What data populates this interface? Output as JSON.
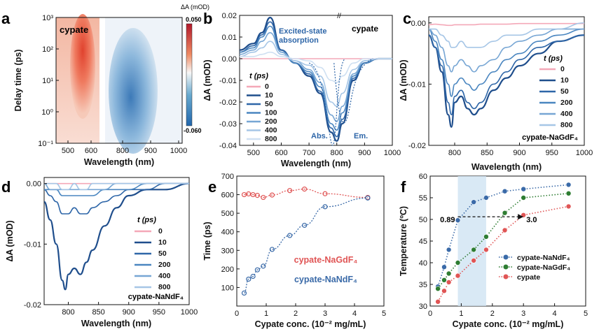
{
  "panels": {
    "a": {
      "label": "a",
      "title": "cypate",
      "ylabel": "Delay time (ps)",
      "xlabel": "Wavelength (nm)",
      "xticks": [
        "500",
        "600",
        "800",
        "900",
        "1000"
      ],
      "yticks": [
        "10⁻¹",
        "10⁰",
        "10¹",
        "10²",
        "10³"
      ],
      "colorbar_title": "ΔA (mOD)",
      "colorbar_max": "0.050",
      "colorbar_min": "-0.060",
      "colors": {
        "pos": "#d73027",
        "neg": "#2166ac",
        "zero": "#f7f7f7"
      }
    },
    "b": {
      "label": "b",
      "title": "cypate",
      "ylabel": "ΔA (mOD)",
      "xlabel": "Wavelength (nm)",
      "annotation": "Excited-state absorption",
      "abs_label": "Abs.",
      "em_label": "Em.",
      "legend_title": "t (ps)"
    },
    "c": {
      "label": "c",
      "title": "cypate-NaGdF₄",
      "ylabel": "ΔA (mOD)",
      "xlabel": "Wavelength (nm)",
      "legend_title": "t (ps)"
    },
    "d": {
      "label": "d",
      "title": "cypate-NaNdF₄",
      "ylabel": "ΔA (mOD)",
      "xlabel": "Wavelength (nm)",
      "legend_title": "t (ps)"
    },
    "e": {
      "label": "e",
      "ylabel": "Time (ps)",
      "xlabel": "Cypate conc. (10⁻² mg/mL)",
      "legend": [
        "cypate-NaGdF₄",
        "cypate-NaNdF₄"
      ]
    },
    "f": {
      "label": "f",
      "ylabel": "Temperature (ºC)",
      "xlabel": "Cypate conc. (10⁻² mg/mL)",
      "ann_left": "0.89",
      "ann_right": "3.0",
      "legend": [
        "cypate-NaNdF₄",
        "cypate-NaGdF₄",
        "cypate"
      ]
    }
  },
  "time_legend": [
    "0",
    "10",
    "50",
    "100",
    "200",
    "400",
    "800"
  ],
  "time_legend_short": [
    "0",
    "10",
    "50",
    "200",
    "400",
    "800"
  ],
  "time_colors": [
    "#f4a8b8",
    "#1f4e8c",
    "#2e66a8",
    "#4a86c0",
    "#77a6d4",
    "#a6c6e6",
    "#cfe0f2"
  ],
  "chart_data": [
    {
      "type": "heatmap",
      "panel": "a",
      "x_range": [
        450,
        1000
      ],
      "y_range_log": [
        0.1,
        1000
      ],
      "xlabel": "Wavelength (nm)",
      "ylabel": "Delay time (ps)",
      "colorbar": [
        -0.06,
        0.05
      ]
    },
    {
      "type": "line",
      "panel": "b",
      "xlabel": "Wavelength (nm)",
      "ylabel": "ΔA (mOD)",
      "xlim": [
        450,
        1000
      ],
      "ylim": [
        -0.04,
        0.02
      ],
      "x": [
        450,
        500,
        530,
        560,
        600,
        650,
        700,
        740,
        780,
        800,
        820,
        860,
        900,
        950,
        1000
      ],
      "series": [
        {
          "name": "0",
          "values": [
            0,
            0,
            0,
            0,
            0,
            0,
            0,
            0,
            0,
            0,
            0,
            0,
            0,
            0,
            0
          ]
        },
        {
          "name": "10",
          "values": [
            0.004,
            0.007,
            0.012,
            0.019,
            0.004,
            -0.002,
            -0.008,
            -0.016,
            -0.034,
            -0.038,
            -0.03,
            -0.01,
            -0.002,
            0,
            0
          ]
        },
        {
          "name": "50",
          "values": [
            0.003,
            0.006,
            0.011,
            0.017,
            0.004,
            -0.002,
            -0.007,
            -0.015,
            -0.032,
            -0.036,
            -0.028,
            -0.009,
            -0.002,
            0,
            0
          ]
        },
        {
          "name": "100",
          "values": [
            0.003,
            0.005,
            0.01,
            0.015,
            0.003,
            -0.002,
            -0.006,
            -0.013,
            -0.03,
            -0.033,
            -0.025,
            -0.008,
            -0.002,
            0,
            0
          ]
        },
        {
          "name": "200",
          "values": [
            0.002,
            0.004,
            0.008,
            0.012,
            0.003,
            -0.001,
            -0.005,
            -0.011,
            -0.026,
            -0.029,
            -0.022,
            -0.007,
            -0.001,
            0,
            0
          ]
        },
        {
          "name": "400",
          "values": [
            0.001,
            0.003,
            0.005,
            0.008,
            0.002,
            -0.001,
            -0.003,
            -0.008,
            -0.02,
            -0.022,
            -0.016,
            -0.005,
            -0.001,
            0,
            0
          ]
        },
        {
          "name": "800",
          "values": [
            0.001,
            0.001,
            0.002,
            0.003,
            0.001,
            0,
            -0.001,
            -0.004,
            -0.01,
            -0.011,
            -0.008,
            -0.002,
            0,
            0,
            0
          ]
        }
      ]
    },
    {
      "type": "line",
      "panel": "c",
      "xlabel": "Wavelength (nm)",
      "ylabel": "ΔA (mOD)",
      "xlim": [
        760,
        1000
      ],
      "ylim": [
        -0.02,
        0.001
      ],
      "x": [
        760,
        770,
        780,
        790,
        795,
        800,
        810,
        820,
        830,
        840,
        860,
        880,
        900,
        930,
        960,
        1000
      ],
      "series": [
        {
          "name": "0",
          "values": [
            -0.0003,
            -0.0002,
            -0.0003,
            -0.0004,
            -0.0004,
            -0.0003,
            -0.0003,
            -0.0003,
            -0.0003,
            -0.0002,
            -0.0002,
            -0.0002,
            -0.0001,
            -0.0001,
            -0.0001,
            -0.0001
          ]
        },
        {
          "name": "10",
          "values": [
            -0.002,
            -0.004,
            -0.008,
            -0.015,
            -0.017,
            -0.013,
            -0.012,
            -0.014,
            -0.015,
            -0.014,
            -0.011,
            -0.009,
            -0.007,
            -0.005,
            -0.003,
            -0.002
          ]
        },
        {
          "name": "50",
          "values": [
            -0.002,
            -0.004,
            -0.007,
            -0.013,
            -0.015,
            -0.012,
            -0.011,
            -0.013,
            -0.014,
            -0.013,
            -0.01,
            -0.008,
            -0.006,
            -0.004,
            -0.003,
            -0.002
          ]
        },
        {
          "name": "200",
          "values": [
            -0.001,
            -0.003,
            -0.006,
            -0.01,
            -0.012,
            -0.01,
            -0.009,
            -0.01,
            -0.011,
            -0.01,
            -0.008,
            -0.006,
            -0.005,
            -0.003,
            -0.002,
            -0.001
          ]
        },
        {
          "name": "400",
          "values": [
            -0.001,
            -0.002,
            -0.004,
            -0.007,
            -0.008,
            -0.007,
            -0.006,
            -0.007,
            -0.008,
            -0.007,
            -0.006,
            -0.004,
            -0.003,
            -0.002,
            -0.001,
            -0.001
          ]
        },
        {
          "name": "800",
          "values": [
            -0.001,
            -0.001,
            -0.002,
            -0.003,
            -0.004,
            -0.004,
            -0.003,
            -0.004,
            -0.004,
            -0.004,
            -0.003,
            -0.002,
            -0.002,
            -0.001,
            -0.001,
            0
          ]
        }
      ]
    },
    {
      "type": "line",
      "panel": "d",
      "xlabel": "Wavelength (nm)",
      "ylabel": "ΔA (mOD)",
      "xlim": [
        760,
        1000
      ],
      "ylim": [
        -0.02,
        0.001
      ],
      "x": [
        760,
        770,
        780,
        790,
        795,
        800,
        810,
        820,
        830,
        840,
        860,
        880,
        900,
        930,
        960,
        1000
      ],
      "series": [
        {
          "name": "0",
          "values": [
            0,
            0,
            0,
            0,
            0,
            0,
            0,
            0,
            0,
            0,
            0,
            0,
            0,
            0,
            0,
            0
          ]
        },
        {
          "name": "10",
          "values": [
            -0.003,
            -0.006,
            -0.01,
            -0.016,
            -0.0175,
            -0.015,
            -0.014,
            -0.015,
            -0.013,
            -0.011,
            -0.007,
            -0.004,
            -0.002,
            -0.001,
            -0.001,
            0
          ]
        },
        {
          "name": "50",
          "values": [
            -0.001,
            -0.002,
            -0.003,
            -0.005,
            -0.005,
            -0.005,
            -0.004,
            -0.005,
            -0.005,
            -0.004,
            -0.003,
            -0.002,
            -0.001,
            -0.001,
            0,
            0
          ]
        },
        {
          "name": "200",
          "values": [
            -0.001,
            -0.001,
            -0.001,
            -0.002,
            -0.002,
            -0.002,
            -0.002,
            -0.002,
            -0.002,
            -0.002,
            -0.001,
            -0.001,
            -0.001,
            0,
            0,
            0
          ]
        },
        {
          "name": "400",
          "values": [
            0,
            -0.001,
            -0.001,
            -0.001,
            -0.001,
            -0.001,
            -0.001,
            -0.001,
            -0.001,
            -0.001,
            -0.001,
            0,
            0,
            0,
            0,
            0
          ]
        },
        {
          "name": "800",
          "values": [
            0,
            0,
            0,
            -0.001,
            -0.001,
            -0.001,
            0,
            -0.001,
            -0.001,
            0,
            0,
            0,
            0,
            0,
            0,
            0
          ]
        }
      ]
    },
    {
      "type": "scatter",
      "panel": "e",
      "xlabel": "Cypate conc. (10⁻² mg/mL)",
      "ylabel": "Time (ps)",
      "xlim": [
        0,
        5
      ],
      "ylim": [
        0,
        700
      ],
      "series": [
        {
          "name": "cypate-NaGdF₄",
          "color": "#e05555",
          "x": [
            0.25,
            0.4,
            0.55,
            0.7,
            0.9,
            1.2,
            1.8,
            2.3,
            3.0,
            4.45
          ],
          "y": [
            600,
            604,
            600,
            596,
            585,
            598,
            622,
            630,
            605,
            585
          ]
        },
        {
          "name": "cypate-NaNdF₄",
          "color": "#3a6aa8",
          "x": [
            0.25,
            0.4,
            0.55,
            0.7,
            0.9,
            1.2,
            1.8,
            2.3,
            3.0,
            4.45
          ],
          "y": [
            70,
            145,
            160,
            195,
            215,
            305,
            380,
            435,
            535,
            582
          ]
        }
      ]
    },
    {
      "type": "scatter",
      "panel": "f",
      "xlabel": "Cypate conc. (10⁻² mg/mL)",
      "ylabel": "Temperature (ºC)",
      "xlim": [
        0,
        5
      ],
      "ylim": [
        30,
        60
      ],
      "series": [
        {
          "name": "cypate-NaNdF₄",
          "color": "#3a6aa8",
          "x": [
            0.25,
            0.45,
            0.6,
            0.89,
            1.4,
            1.8,
            2.4,
            3.0,
            4.45
          ],
          "y": [
            34.5,
            39,
            43,
            49.8,
            54,
            55,
            56.5,
            57,
            58
          ]
        },
        {
          "name": "cypate-NaGdF₄",
          "color": "#2e7d32",
          "x": [
            0.25,
            0.45,
            0.6,
            0.89,
            1.4,
            1.8,
            2.4,
            3.0,
            4.45
          ],
          "y": [
            34,
            36,
            37.5,
            40,
            43,
            46,
            51.5,
            55,
            56
          ]
        },
        {
          "name": "cypate",
          "color": "#e05555",
          "x": [
            0.25,
            0.45,
            0.6,
            0.89,
            1.4,
            1.8,
            2.4,
            3.0,
            4.45
          ],
          "y": [
            31,
            33.5,
            35.5,
            37,
            40.5,
            43,
            47.5,
            51,
            53
          ]
        }
      ]
    }
  ]
}
